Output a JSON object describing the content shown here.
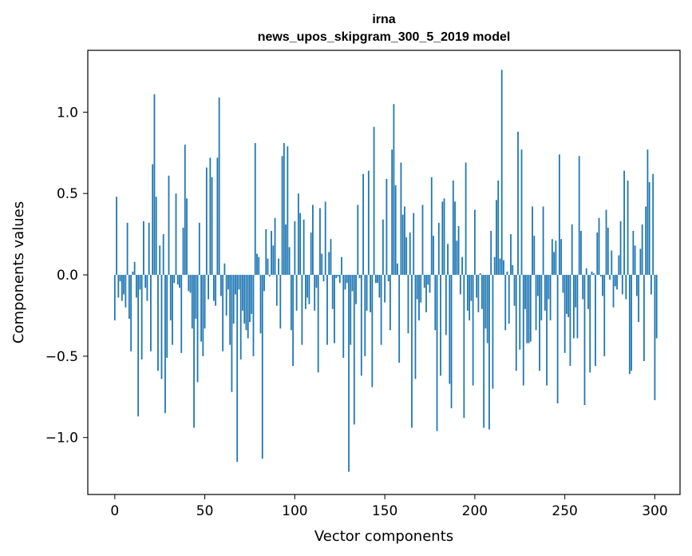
{
  "chart_data": {
    "type": "bar",
    "title": "irna",
    "subtitle": "news_upos_skipgram_300_5_2019 model",
    "xlabel": "Vector components",
    "ylabel": "Components values",
    "xlim": [
      -15,
      314
    ],
    "ylim": [
      -1.35,
      1.38
    ],
    "xticks": [
      0,
      50,
      100,
      150,
      200,
      250,
      300
    ],
    "yticks": [
      -1.0,
      -0.5,
      0.0,
      0.5,
      1.0
    ],
    "ytick_labels": [
      "−1.0",
      "−0.5",
      "0.0",
      "0.5",
      "1.0"
    ],
    "grid": false,
    "bar_color": "#1f77b4",
    "values": [
      -0.28,
      0.48,
      -0.14,
      -0.04,
      -0.16,
      -0.12,
      -0.2,
      0.32,
      -0.27,
      -0.47,
      0.02,
      0.08,
      -0.14,
      -0.87,
      -0.09,
      -0.52,
      0.33,
      -0.08,
      -0.16,
      0.32,
      -0.47,
      0.68,
      1.11,
      0.48,
      -0.59,
      0.18,
      -0.64,
      0.25,
      -0.85,
      -0.51,
      0.61,
      -0.28,
      -0.43,
      -0.05,
      0.5,
      -0.06,
      -0.08,
      -0.48,
      0.29,
      0.8,
      0.47,
      -0.1,
      -0.11,
      -0.33,
      -0.94,
      -0.27,
      -0.66,
      0.32,
      -0.41,
      -0.5,
      -0.33,
      0.66,
      -0.15,
      0.72,
      0.6,
      -0.16,
      -0.19,
      0.72,
      1.09,
      -0.13,
      -0.47,
      0.07,
      -0.25,
      -0.09,
      -0.43,
      -0.72,
      -0.3,
      -0.12,
      -1.15,
      -0.09,
      -0.52,
      -0.22,
      -0.3,
      -0.34,
      -0.39,
      -0.29,
      -0.24,
      -0.5,
      0.81,
      0.13,
      0.11,
      -0.36,
      -1.13,
      -0.1,
      0.28,
      0.1,
      -0.01,
      0.27,
      0.18,
      0.35,
      -0.19,
      0.1,
      -0.33,
      0.73,
      0.81,
      0.31,
      0.79,
      0.17,
      -0.34,
      -0.56,
      0.33,
      -0.22,
      0.5,
      0.38,
      -0.43,
      0.34,
      -0.21,
      -0.14,
      -0.18,
      0.26,
      0.43,
      -0.22,
      -0.08,
      -0.6,
      0.41,
      0.13,
      -0.04,
      0.45,
      -0.43,
      0.14,
      0.22,
      -0.21,
      -0.42,
      -0.02,
      -0.01,
      -0.05,
      0.11,
      -0.51,
      -0.09,
      -0.05,
      -1.21,
      -0.43,
      -0.1,
      -0.92,
      -0.18,
      0.43,
      -0.02,
      -0.62,
      0.62,
      -0.5,
      -0.22,
      0.64,
      -0.23,
      -0.69,
      0.91,
      -0.05,
      -0.05,
      -0.14,
      -0.43,
      0.34,
      -0.17,
      0.59,
      -0.04,
      -0.34,
      0.77,
      1.05,
      0.55,
      0.07,
      -0.54,
      0.69,
      0.37,
      0.42,
      0.23,
      -0.36,
      0.26,
      -0.94,
      0.38,
      -0.64,
      -0.15,
      -0.28,
      -0.17,
      0.43,
      -0.08,
      -0.23,
      -0.06,
      -0.11,
      0.6,
      0.24,
      -0.34,
      -0.96,
      0.32,
      -0.62,
      0.45,
      0.47,
      -0.37,
      0.19,
      -0.67,
      -0.82,
      0.58,
      0.45,
      0.21,
      0.3,
      -0.12,
      0.11,
      -0.88,
      0.69,
      -0.22,
      -0.28,
      -0.16,
      -0.68,
      0.4,
      -0.14,
      -0.23,
      0.01,
      -0.21,
      -0.94,
      -0.33,
      -0.42,
      -0.95,
      0.27,
      -0.7,
      0.11,
      0.46,
      0.58,
      0.1,
      1.26,
      0.09,
      -0.34,
      0.02,
      -0.3,
      0.25,
      0.06,
      -0.19,
      -0.59,
      0.88,
      -0.46,
      0.77,
      -0.68,
      -0.21,
      -0.42,
      -0.42,
      -0.41,
      0.42,
      0.24,
      -0.34,
      -0.13,
      -0.59,
      -0.28,
      0.42,
      -0.22,
      -0.68,
      -0.15,
      -0.28,
      0.22,
      0.14,
      0.21,
      -0.79,
      0.74,
      0.22,
      -0.11,
      -0.48,
      -0.24,
      -0.26,
      -0.56,
      0.31,
      -0.39,
      -0.2,
      -0.39,
      0.73,
      0.27,
      -0.15,
      -0.8,
      0.04,
      -0.21,
      -0.6,
      0.02,
      0.01,
      -0.56,
      0.26,
      0.35,
      -0.01,
      -0.13,
      -0.5,
      0.4,
      0.29,
      -0.03,
      0.15,
      -0.2,
      -0.07,
      -0.09,
      0.12,
      0.33,
      -0.12,
      0.64,
      -0.15,
      0.58,
      -0.61,
      -0.59,
      0.27,
      0.18,
      -0.13,
      -0.29,
      0.16,
      0.31,
      -0.53,
      0.42,
      0.77,
      0.57,
      -0.12,
      0.62,
      -0.77,
      -0.39
    ]
  }
}
